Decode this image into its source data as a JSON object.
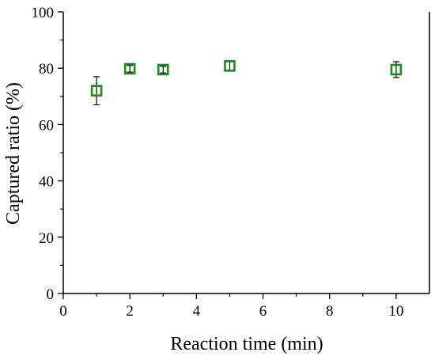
{
  "chart_data": {
    "type": "scatter",
    "xlabel": "Reaction time (min)",
    "ylabel": "Captured ratio (%)",
    "xlim": [
      0,
      11
    ],
    "ylim": [
      0,
      100
    ],
    "x_ticks": [
      0,
      2,
      4,
      6,
      8,
      10
    ],
    "y_ticks": [
      0,
      20,
      40,
      60,
      80,
      100
    ],
    "grid": false,
    "marker": "open-square",
    "series": [
      {
        "color": "#1a8c1a",
        "x": [
          1,
          2,
          3,
          5,
          10
        ],
        "y": [
          72,
          79.8,
          79.5,
          80.8,
          79.5
        ],
        "error": [
          5,
          1.2,
          1.2,
          1.5,
          2.8
        ]
      }
    ]
  }
}
